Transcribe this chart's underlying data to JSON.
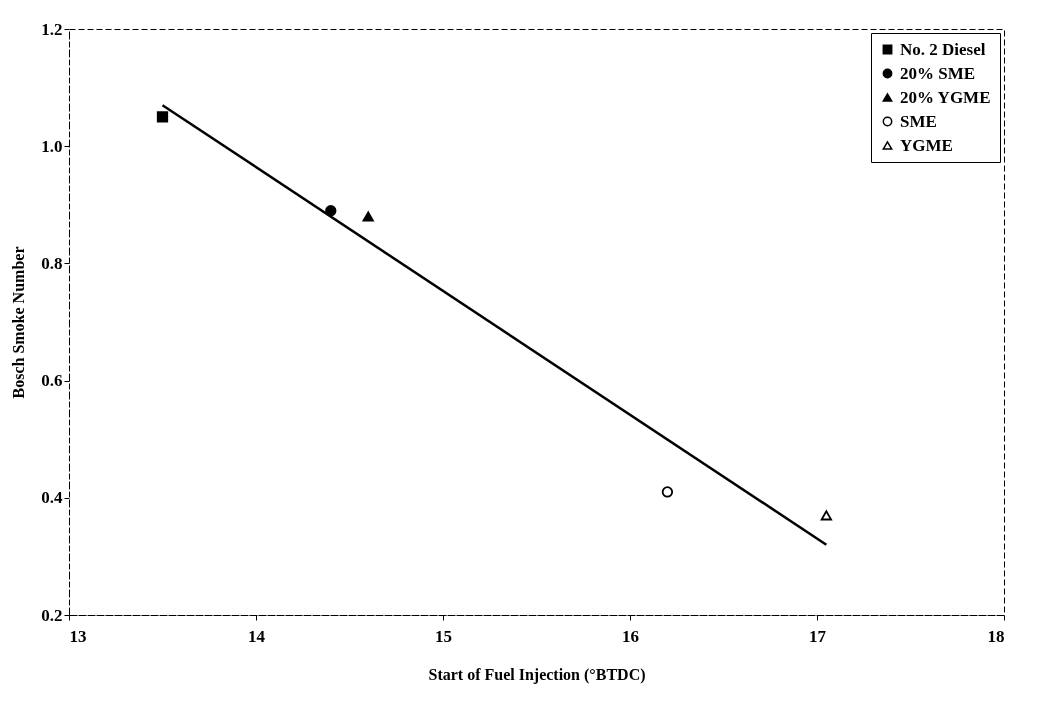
{
  "chart_data": {
    "type": "scatter",
    "xlabel": "Start of Fuel Injection (°BTDC)",
    "ylabel": "Bosch Smoke Number",
    "xlim": [
      13,
      18
    ],
    "xticks": [
      13,
      14,
      15,
      16,
      17,
      18
    ],
    "ylim": [
      0.2,
      1.2
    ],
    "yticks": [
      0.2,
      0.4,
      0.6,
      0.8,
      {
        "value": 1,
        "label": "1.0"
      },
      1.2
    ],
    "grid": false,
    "legend": "top right",
    "series": [
      {
        "name": "No. 2 Diesel",
        "color": "#000000",
        "marker": "square",
        "x": [
          13.5
        ],
        "values": [
          1.05
        ]
      },
      {
        "name": "20% SME",
        "color": "#000000",
        "marker": "circle",
        "x": [
          14.4
        ],
        "values": [
          0.89
        ]
      },
      {
        "name": "20% YGME",
        "color": "#000000",
        "marker": "triangle",
        "x": [
          14.6
        ],
        "values": [
          0.88
        ]
      },
      {
        "name": "SME",
        "color": "#ffffff",
        "marker": "circle",
        "x": [
          16.2
        ],
        "values": [
          0.41
        ]
      },
      {
        "name": "YGME",
        "color": "#ffffff",
        "marker": "triangle",
        "x": [
          17.05
        ],
        "values": [
          0.37
        ]
      },
      {
        "type": "line",
        "color": "#000000",
        "x": [
          13.5,
          17.05
        ],
        "values": [
          1.07,
          0.32
        ]
      }
    ]
  }
}
